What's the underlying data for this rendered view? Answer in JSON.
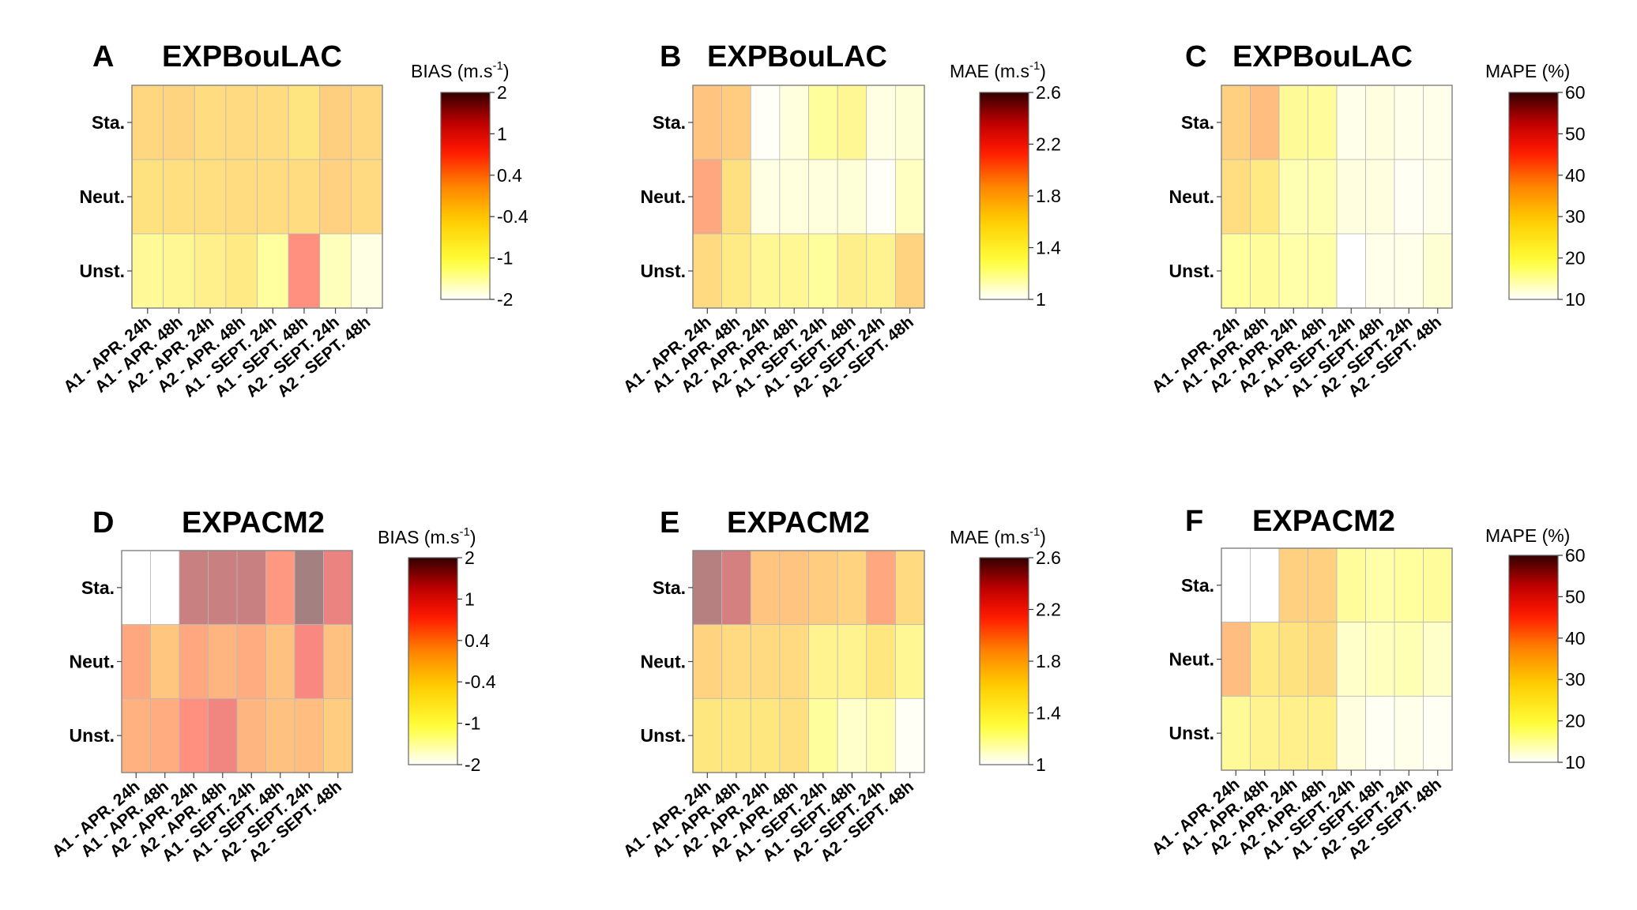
{
  "chart_data": [
    {
      "type": "heatmap",
      "letter": "A",
      "title": "EXPBouLAC",
      "colorbar": {
        "label": "BIAS (m.s",
        "sup": "-1",
        "close": ")",
        "ticks": [
          "2",
          "1",
          "0.4",
          "-0.4",
          "-1",
          "-2"
        ]
      },
      "rows": [
        "Sta.",
        "Neut.",
        "Unst."
      ],
      "categories": [
        "A1 - APR. 24h",
        "A1 - APR. 48h",
        "A2 - APR. 24h",
        "A2 - APR. 48h",
        "A1 - SEPT. 24h",
        "A1 - SEPT. 48h",
        "A2 - SEPT. 24h",
        "A2 - SEPT. 48h"
      ],
      "vmin": -2,
      "vmax": 2,
      "values": [
        [
          -0.2,
          -0.15,
          -0.3,
          -0.25,
          -0.3,
          -0.45,
          -0.05,
          -0.2
        ],
        [
          -0.4,
          -0.35,
          -0.35,
          -0.3,
          -0.3,
          -0.3,
          -0.1,
          -0.25
        ],
        [
          -1.1,
          -1.0,
          -0.8,
          -0.6,
          -1.3,
          0.8,
          -1.5,
          -1.8
        ]
      ]
    },
    {
      "type": "heatmap",
      "letter": "B",
      "title": "EXPBouLAC",
      "colorbar": {
        "label": "MAE (m.s",
        "sup": "-1",
        "close": ")",
        "ticks": [
          "2.6",
          "2.2",
          "1.8",
          "1.4",
          "1"
        ]
      },
      "rows": [
        "Sta.",
        "Neut.",
        "Unst."
      ],
      "categories": [
        "A1 - APR. 24h",
        "A1 - APR. 48h",
        "A2 - APR. 24h",
        "A2 - APR. 48h",
        "A1 - SEPT. 24h",
        "A1 - SEPT. 48h",
        "A2 - SEPT. 24h",
        "A2 - SEPT. 48h"
      ],
      "vmin": 1,
      "vmax": 2.6,
      "values": [
        [
          1.85,
          1.8,
          1.02,
          1.1,
          1.3,
          1.4,
          1.08,
          1.12
        ],
        [
          2.0,
          1.65,
          1.08,
          1.1,
          1.1,
          1.12,
          1.02,
          1.18
        ],
        [
          1.7,
          1.55,
          1.4,
          1.4,
          1.3,
          1.5,
          1.45,
          1.75
        ]
      ]
    },
    {
      "type": "heatmap",
      "letter": "C",
      "title": "EXPBouLAC",
      "colorbar": {
        "label": "MAPE (%)",
        "sup": "",
        "close": "",
        "ticks": [
          "60",
          "50",
          "40",
          "30",
          "20",
          "10"
        ]
      },
      "rows": [
        "Sta.",
        "Neut.",
        "Unst."
      ],
      "categories": [
        "A1 - APR. 24h",
        "A1 - APR. 48h",
        "A2 - APR. 24h",
        "A2 - APR. 48h",
        "A1 - SEPT. 24h",
        "A1 - SEPT. 48h",
        "A2 - SEPT. 24h",
        "A2 - SEPT. 48h"
      ],
      "vmin": 10,
      "vmax": 60,
      "values": [
        [
          34,
          38,
          21,
          20,
          12,
          13,
          12,
          12
        ],
        [
          31,
          28,
          17,
          17,
          13,
          13,
          11,
          12
        ],
        [
          19,
          20,
          18,
          18,
          10,
          12,
          12,
          14
        ]
      ]
    },
    {
      "type": "heatmap",
      "letter": "D",
      "title": "EXPACM2",
      "colorbar": {
        "label": "BIAS (m.s",
        "sup": "-1",
        "close": ")",
        "ticks": [
          "2",
          "1",
          "0.4",
          "-0.4",
          "-1",
          "-2"
        ]
      },
      "rows": [
        "Sta.",
        "Neut.",
        "Unst."
      ],
      "categories": [
        "A1 - APR. 24h",
        "A1 - APR. 48h",
        "A2 - APR. 24h",
        "A2 - APR. 48h",
        "A1 - SEPT. 24h",
        "A1 - SEPT. 48h",
        "A2 - SEPT. 24h",
        "A2 - SEPT. 48h"
      ],
      "vmin": -2,
      "vmax": 2,
      "values": [
        [
          -2.0,
          -2.0,
          1.6,
          1.6,
          1.6,
          0.7,
          1.9,
          1.2
        ],
        [
          0.5,
          0.1,
          0.5,
          0.35,
          0.45,
          0.2,
          1.0,
          0.2
        ],
        [
          0.4,
          0.45,
          0.8,
          1.1,
          0.35,
          0.2,
          0.25,
          0.0
        ]
      ]
    },
    {
      "type": "heatmap",
      "letter": "E",
      "title": "EXPACM2",
      "colorbar": {
        "label": "MAE (m.s",
        "sup": "-1",
        "close": ")",
        "ticks": [
          "2.6",
          "2.2",
          "1.8",
          "1.4",
          "1"
        ]
      },
      "rows": [
        "Sta.",
        "Neut.",
        "Unst."
      ],
      "categories": [
        "A1 - APR. 24h",
        "A1 - APR. 48h",
        "A2 - APR. 24h",
        "A2 - APR. 48h",
        "A1 - SEPT. 24h",
        "A1 - SEPT. 48h",
        "A2 - SEPT. 24h",
        "A2 - SEPT. 48h"
      ],
      "vmin": 1,
      "vmax": 2.6,
      "values": [
        [
          2.5,
          2.4,
          1.85,
          1.85,
          1.8,
          1.75,
          2.0,
          1.7
        ],
        [
          1.75,
          1.7,
          1.7,
          1.7,
          1.45,
          1.45,
          1.6,
          1.4
        ],
        [
          1.6,
          1.6,
          1.6,
          1.65,
          1.3,
          1.15,
          1.22,
          1.03
        ]
      ]
    },
    {
      "type": "heatmap",
      "letter": "F",
      "title": "EXPACM2",
      "colorbar": {
        "label": "MAPE (%)",
        "sup": "",
        "close": "",
        "ticks": [
          "60",
          "50",
          "40",
          "30",
          "20",
          "10"
        ]
      },
      "rows": [
        "Sta.",
        "Neut.",
        "Unst."
      ],
      "categories": [
        "A1 - APR. 24h",
        "A1 - APR. 48h",
        "A2 - APR. 24h",
        "A2 - APR. 48h",
        "A1 - SEPT. 24h",
        "A1 - SEPT. 48h",
        "A2 - SEPT. 24h",
        "A2 - SEPT. 48h"
      ],
      "vmin": 10,
      "vmax": 60,
      "values": [
        [
          10,
          10,
          34,
          34,
          20,
          18,
          19,
          20
        ],
        [
          38,
          28,
          30,
          32,
          15,
          16,
          17,
          15
        ],
        [
          21,
          24,
          25,
          25,
          13,
          11,
          12,
          11
        ]
      ]
    }
  ]
}
